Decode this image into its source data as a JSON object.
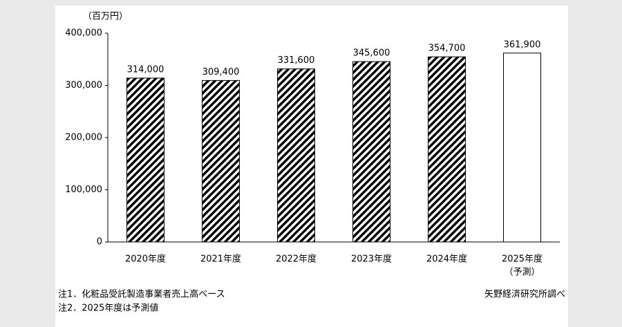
{
  "chart_data": {
    "type": "bar",
    "unit": "（百万円）",
    "categories": [
      "2020年度",
      "2021年度",
      "2022年度",
      "2023年度",
      "2024年度",
      "2025年度"
    ],
    "forecast_note": "（予測）",
    "values": [
      314000,
      309400,
      331600,
      345600,
      354700,
      361900
    ],
    "value_labels": [
      "314,000",
      "309,400",
      "331,600",
      "345,600",
      "354,700",
      "361,900"
    ],
    "hatch": [
      true,
      true,
      true,
      true,
      true,
      false
    ],
    "color": "#000000",
    "ylim": [
      0,
      400000
    ],
    "yticks": [
      0,
      {
        "value": 100000,
        "label": "100,000"
      },
      {
        "value": 200000,
        "label": "200,000"
      },
      {
        "value": 300000,
        "label": "300,000"
      },
      {
        "value": 400000,
        "label": "400,000"
      }
    ],
    "notes": [
      "注1．化粧品受託製造事業者売上高ベース",
      "注2．2025年度は予測値"
    ],
    "source": "矢野経済研究所調べ"
  }
}
